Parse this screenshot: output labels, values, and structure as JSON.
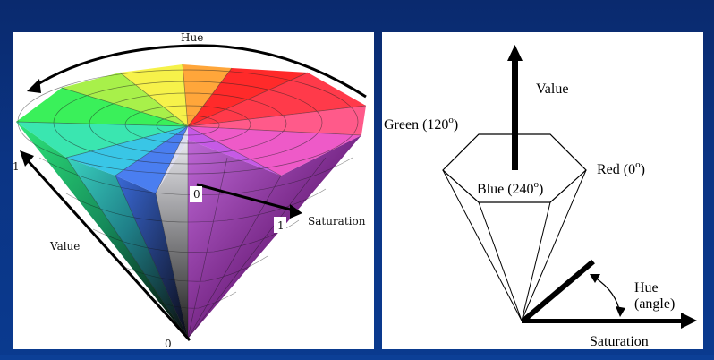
{
  "left": {
    "hue_label": "Hue",
    "value_label": "Value",
    "saturation_label": "Saturation",
    "tick_one_left": "1",
    "tick_zero_bottom": "0",
    "tick_zero_inner": "0",
    "tick_one_sat": "1"
  },
  "right": {
    "value_label": "Value",
    "green_label": "Green (120",
    "red_label": "Red (0",
    "blue_label": "Blue (240",
    "degree": "o",
    "close_paren": ")",
    "hue_label": "Hue",
    "angle_label": "(angle)",
    "saturation_label": "Saturation"
  },
  "colors": {
    "background": "#0b3484",
    "panel": "#ffffff",
    "ink": "#000000"
  }
}
